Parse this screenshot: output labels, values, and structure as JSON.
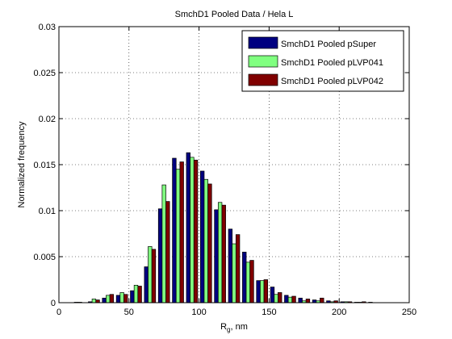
{
  "chart_data": {
    "type": "bar",
    "title": "SmchD1 Pooled Data / Hela L",
    "xlabel": "R",
    "xlabel_sub": "g",
    "xlabel_suffix": ", nm",
    "ylabel": "Normalized frequency",
    "xlim": [
      0,
      250
    ],
    "ylim": [
      0,
      0.03
    ],
    "xticks": [
      0,
      50,
      100,
      150,
      200,
      250
    ],
    "yticks": [
      0,
      0.005,
      0.01,
      0.015,
      0.02,
      0.025,
      0.03
    ],
    "xtick_labels": [
      "0",
      "50",
      "100",
      "150",
      "200",
      "250"
    ],
    "ytick_labels": [
      "0",
      "0.005",
      "0.01",
      "0.015",
      "0.02",
      "0.025",
      "0.03"
    ],
    "grid": true,
    "legend_position": "top-right",
    "bin_centers": [
      15,
      25,
      35,
      45,
      55,
      65,
      75,
      85,
      95,
      105,
      115,
      125,
      135,
      145,
      155,
      165,
      175,
      185,
      195,
      205,
      215,
      225
    ],
    "series": [
      {
        "name": "SmchD1 Pooled pSuper",
        "color": "#000080",
        "values": [
          5e-05,
          0.0001,
          0.0005,
          0.0008,
          0.0013,
          0.0039,
          0.0102,
          0.0157,
          0.0163,
          0.0143,
          0.0101,
          0.008,
          0.0055,
          0.0024,
          0.0017,
          0.0008,
          0.0005,
          0.0003,
          0.0002,
          0.0001,
          5e-05,
          5e-05
        ]
      },
      {
        "name": "SmchD1 Pooled pLVP041",
        "color": "#80ff80",
        "values": [
          5e-05,
          0.0004,
          0.0008,
          0.0011,
          0.0019,
          0.0061,
          0.0128,
          0.0145,
          0.0158,
          0.0134,
          0.0109,
          0.0064,
          0.0044,
          0.0024,
          0.0009,
          0.0006,
          0.0002,
          0.0002,
          0.0001,
          0.0001,
          5e-05,
          0.0
        ]
      },
      {
        "name": "SmchD1 Pooled pLVP042",
        "color": "#800000",
        "values": [
          0.0,
          0.0003,
          0.0009,
          0.0009,
          0.0018,
          0.0058,
          0.011,
          0.0153,
          0.0155,
          0.0129,
          0.0106,
          0.0074,
          0.0046,
          0.0025,
          0.0011,
          0.0007,
          0.0004,
          0.0005,
          0.0002,
          0.0001,
          0.0001,
          0.0
        ]
      }
    ]
  }
}
